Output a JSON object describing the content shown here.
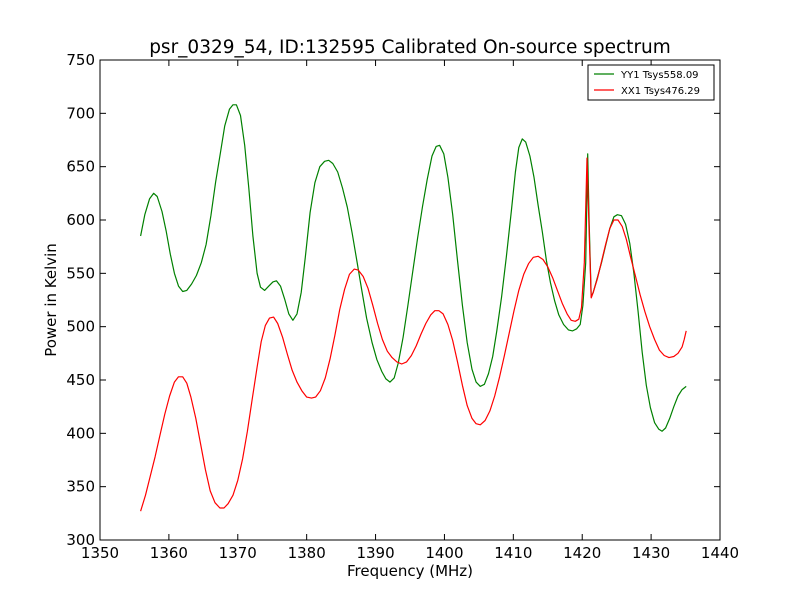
{
  "chart_data": {
    "type": "line",
    "title": "psr_0329_54, ID:132595 Calibrated On-source spectrum",
    "xlabel": "Frequency (MHz)",
    "ylabel": "Power in Kelvin",
    "xlim": [
      1350,
      1440
    ],
    "ylim": [
      300,
      750
    ],
    "xticks": [
      1350,
      1360,
      1370,
      1380,
      1390,
      1400,
      1410,
      1420,
      1430,
      1440
    ],
    "yticks": [
      300,
      350,
      400,
      450,
      500,
      550,
      600,
      650,
      700,
      750
    ],
    "xtick_labels": [
      "1350",
      "1360",
      "1370",
      "1380",
      "1390",
      "1400",
      "1410",
      "1420",
      "1430",
      "1440"
    ],
    "ytick_labels": [
      "300",
      "350",
      "400",
      "450",
      "500",
      "550",
      "600",
      "650",
      "700",
      "750"
    ],
    "grid": false,
    "legend_position": "top-right",
    "series": [
      {
        "name": "YY1 Tsys558.09",
        "color": "#008000",
        "points": [
          [
            1355.9,
            585
          ],
          [
            1356.5,
            605
          ],
          [
            1357.2,
            620
          ],
          [
            1357.8,
            625
          ],
          [
            1358.3,
            622
          ],
          [
            1359.0,
            608
          ],
          [
            1359.6,
            590
          ],
          [
            1360.2,
            568
          ],
          [
            1360.8,
            550
          ],
          [
            1361.4,
            538
          ],
          [
            1362.0,
            533
          ],
          [
            1362.6,
            534
          ],
          [
            1363.3,
            540
          ],
          [
            1364.0,
            548
          ],
          [
            1364.7,
            560
          ],
          [
            1365.4,
            577
          ],
          [
            1366.1,
            604
          ],
          [
            1366.8,
            636
          ],
          [
            1367.5,
            664
          ],
          [
            1368.1,
            688
          ],
          [
            1368.8,
            704
          ],
          [
            1369.3,
            708
          ],
          [
            1369.8,
            708
          ],
          [
            1370.4,
            698
          ],
          [
            1371.0,
            670
          ],
          [
            1371.6,
            630
          ],
          [
            1372.2,
            585
          ],
          [
            1372.8,
            550
          ],
          [
            1373.3,
            537
          ],
          [
            1373.9,
            534
          ],
          [
            1374.5,
            538
          ],
          [
            1375.1,
            542
          ],
          [
            1375.6,
            543
          ],
          [
            1376.2,
            538
          ],
          [
            1376.8,
            526
          ],
          [
            1377.4,
            512
          ],
          [
            1378.0,
            506
          ],
          [
            1378.6,
            512
          ],
          [
            1379.2,
            532
          ],
          [
            1379.8,
            565
          ],
          [
            1380.5,
            607
          ],
          [
            1381.2,
            635
          ],
          [
            1381.9,
            650
          ],
          [
            1382.6,
            655
          ],
          [
            1383.2,
            656
          ],
          [
            1383.8,
            653
          ],
          [
            1384.5,
            645
          ],
          [
            1385.2,
            630
          ],
          [
            1385.9,
            612
          ],
          [
            1386.6,
            588
          ],
          [
            1387.3,
            561
          ],
          [
            1388.0,
            534
          ],
          [
            1388.7,
            508
          ],
          [
            1389.5,
            485
          ],
          [
            1390.2,
            469
          ],
          [
            1390.9,
            458
          ],
          [
            1391.5,
            451
          ],
          [
            1392.1,
            448
          ],
          [
            1392.7,
            452
          ],
          [
            1393.3,
            466
          ],
          [
            1394.0,
            490
          ],
          [
            1394.7,
            520
          ],
          [
            1395.4,
            552
          ],
          [
            1396.1,
            583
          ],
          [
            1396.8,
            612
          ],
          [
            1397.5,
            638
          ],
          [
            1398.2,
            660
          ],
          [
            1398.8,
            669
          ],
          [
            1399.3,
            670
          ],
          [
            1399.9,
            662
          ],
          [
            1400.5,
            640
          ],
          [
            1401.2,
            605
          ],
          [
            1401.9,
            562
          ],
          [
            1402.6,
            520
          ],
          [
            1403.3,
            485
          ],
          [
            1404.0,
            460
          ],
          [
            1404.6,
            448
          ],
          [
            1405.2,
            444
          ],
          [
            1405.8,
            446
          ],
          [
            1406.4,
            456
          ],
          [
            1407.0,
            472
          ],
          [
            1407.6,
            496
          ],
          [
            1408.3,
            528
          ],
          [
            1409.0,
            566
          ],
          [
            1409.7,
            608
          ],
          [
            1410.3,
            645
          ],
          [
            1410.8,
            668
          ],
          [
            1411.3,
            676
          ],
          [
            1411.8,
            673
          ],
          [
            1412.4,
            660
          ],
          [
            1413.0,
            640
          ],
          [
            1413.6,
            614
          ],
          [
            1414.2,
            589
          ],
          [
            1414.8,
            562
          ],
          [
            1415.4,
            541
          ],
          [
            1416.0,
            524
          ],
          [
            1416.6,
            511
          ],
          [
            1417.3,
            502
          ],
          [
            1418.0,
            497
          ],
          [
            1418.6,
            496
          ],
          [
            1419.2,
            498
          ],
          [
            1419.7,
            502
          ],
          [
            1420.1,
            520
          ],
          [
            1420.5,
            560
          ],
          [
            1420.8,
            662
          ],
          [
            1421.0,
            600
          ],
          [
            1421.3,
            528
          ],
          [
            1421.6,
            532
          ],
          [
            1422.2,
            546
          ],
          [
            1422.8,
            560
          ],
          [
            1423.4,
            576
          ],
          [
            1424.0,
            592
          ],
          [
            1424.6,
            603
          ],
          [
            1425.1,
            605
          ],
          [
            1425.7,
            604
          ],
          [
            1426.3,
            596
          ],
          [
            1426.9,
            578
          ],
          [
            1427.5,
            550
          ],
          [
            1428.1,
            515
          ],
          [
            1428.7,
            476
          ],
          [
            1429.3,
            445
          ],
          [
            1429.9,
            424
          ],
          [
            1430.5,
            410
          ],
          [
            1431.1,
            404
          ],
          [
            1431.6,
            402
          ],
          [
            1432.1,
            405
          ],
          [
            1432.7,
            414
          ],
          [
            1433.3,
            425
          ],
          [
            1433.9,
            435
          ],
          [
            1434.5,
            441
          ],
          [
            1435.1,
            444
          ]
        ]
      },
      {
        "name": "XX1 Tsys476.29",
        "color": "#ff0000",
        "points": [
          [
            1355.9,
            327
          ],
          [
            1356.6,
            342
          ],
          [
            1357.3,
            360
          ],
          [
            1358.0,
            378
          ],
          [
            1358.7,
            398
          ],
          [
            1359.4,
            418
          ],
          [
            1360.1,
            435
          ],
          [
            1360.8,
            448
          ],
          [
            1361.4,
            453
          ],
          [
            1362.0,
            453
          ],
          [
            1362.6,
            447
          ],
          [
            1363.2,
            434
          ],
          [
            1363.9,
            414
          ],
          [
            1364.6,
            390
          ],
          [
            1365.3,
            366
          ],
          [
            1366.0,
            346
          ],
          [
            1366.7,
            335
          ],
          [
            1367.4,
            330
          ],
          [
            1368.0,
            330
          ],
          [
            1368.6,
            334
          ],
          [
            1369.3,
            342
          ],
          [
            1370.0,
            356
          ],
          [
            1370.7,
            376
          ],
          [
            1371.4,
            402
          ],
          [
            1372.1,
            432
          ],
          [
            1372.8,
            462
          ],
          [
            1373.4,
            486
          ],
          [
            1374.0,
            501
          ],
          [
            1374.6,
            508
          ],
          [
            1375.2,
            509
          ],
          [
            1375.8,
            503
          ],
          [
            1376.5,
            490
          ],
          [
            1377.2,
            474
          ],
          [
            1377.9,
            459
          ],
          [
            1378.6,
            448
          ],
          [
            1379.3,
            440
          ],
          [
            1380.0,
            434
          ],
          [
            1380.7,
            433
          ],
          [
            1381.3,
            434
          ],
          [
            1382.0,
            440
          ],
          [
            1382.7,
            452
          ],
          [
            1383.4,
            470
          ],
          [
            1384.1,
            492
          ],
          [
            1384.8,
            516
          ],
          [
            1385.5,
            535
          ],
          [
            1386.2,
            549
          ],
          [
            1386.9,
            554
          ],
          [
            1387.5,
            553
          ],
          [
            1388.2,
            547
          ],
          [
            1388.9,
            536
          ],
          [
            1389.6,
            520
          ],
          [
            1390.3,
            503
          ],
          [
            1391.0,
            488
          ],
          [
            1391.7,
            477
          ],
          [
            1392.4,
            471
          ],
          [
            1393.1,
            467
          ],
          [
            1393.8,
            465
          ],
          [
            1394.5,
            467
          ],
          [
            1395.2,
            473
          ],
          [
            1395.9,
            482
          ],
          [
            1396.6,
            493
          ],
          [
            1397.3,
            503
          ],
          [
            1398.0,
            511
          ],
          [
            1398.6,
            515
          ],
          [
            1399.2,
            515
          ],
          [
            1399.8,
            512
          ],
          [
            1400.5,
            502
          ],
          [
            1401.2,
            487
          ],
          [
            1401.9,
            467
          ],
          [
            1402.6,
            445
          ],
          [
            1403.3,
            426
          ],
          [
            1404.0,
            414
          ],
          [
            1404.6,
            409
          ],
          [
            1405.2,
            408
          ],
          [
            1405.9,
            412
          ],
          [
            1406.6,
            421
          ],
          [
            1407.3,
            435
          ],
          [
            1408.0,
            453
          ],
          [
            1408.7,
            473
          ],
          [
            1409.4,
            494
          ],
          [
            1410.1,
            515
          ],
          [
            1410.8,
            534
          ],
          [
            1411.5,
            549
          ],
          [
            1412.2,
            559
          ],
          [
            1412.9,
            565
          ],
          [
            1413.6,
            566
          ],
          [
            1414.3,
            563
          ],
          [
            1415.0,
            556
          ],
          [
            1415.7,
            546
          ],
          [
            1416.4,
            534
          ],
          [
            1417.1,
            522
          ],
          [
            1417.8,
            512
          ],
          [
            1418.4,
            506
          ],
          [
            1419.0,
            505
          ],
          [
            1419.5,
            507
          ],
          [
            1419.9,
            518
          ],
          [
            1420.3,
            560
          ],
          [
            1420.7,
            658
          ],
          [
            1421.0,
            590
          ],
          [
            1421.3,
            527
          ],
          [
            1421.6,
            532
          ],
          [
            1422.2,
            545
          ],
          [
            1422.8,
            561
          ],
          [
            1423.4,
            577
          ],
          [
            1424.0,
            592
          ],
          [
            1424.6,
            600
          ],
          [
            1425.2,
            600
          ],
          [
            1425.8,
            594
          ],
          [
            1426.4,
            582
          ],
          [
            1427.0,
            566
          ],
          [
            1427.7,
            548
          ],
          [
            1428.4,
            530
          ],
          [
            1429.1,
            514
          ],
          [
            1429.8,
            500
          ],
          [
            1430.5,
            488
          ],
          [
            1431.2,
            478
          ],
          [
            1431.9,
            473
          ],
          [
            1432.6,
            471
          ],
          [
            1433.3,
            472
          ],
          [
            1433.9,
            475
          ],
          [
            1434.5,
            481
          ],
          [
            1434.8,
            488
          ],
          [
            1435.1,
            496
          ]
        ]
      }
    ]
  }
}
